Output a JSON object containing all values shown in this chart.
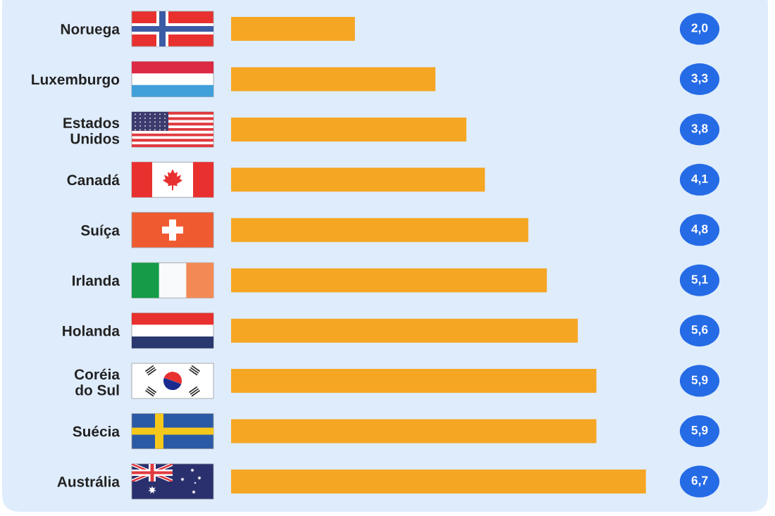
{
  "chart_data": {
    "type": "bar",
    "orientation": "horizontal",
    "categories": [
      "Noruega",
      "Luxemburgo",
      "Estados\nUnidos",
      "Canadá",
      "Suíça",
      "Irlanda",
      "Holanda",
      "Coréia\ndo Sul",
      "Suécia",
      "Austrália"
    ],
    "values": [
      2.0,
      3.3,
      3.8,
      4.1,
      4.8,
      5.1,
      5.6,
      5.9,
      5.9,
      6.7
    ],
    "color": "#f5a623",
    "value_labels": [
      "2,0",
      "3,3",
      "3,8",
      "4,1",
      "4,8",
      "5,1",
      "5,6",
      "5,9",
      "5,9",
      "6,7"
    ]
  }
}
